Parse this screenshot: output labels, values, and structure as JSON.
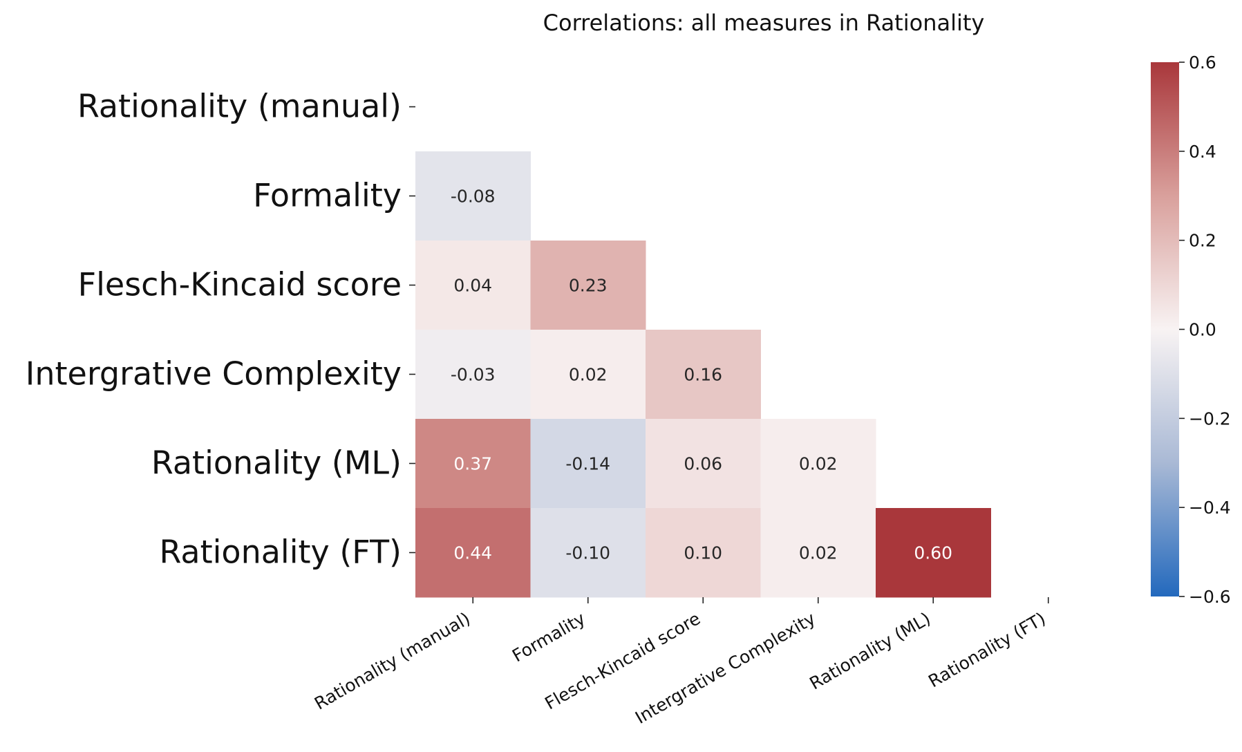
{
  "chart_data": {
    "type": "heatmap",
    "title": "Correlations: all measures in Rationality",
    "row_labels": [
      "Rationality (manual)",
      "Formality",
      "Flesch-Kincaid score",
      "Intergrative Complexity",
      "Rationality (ML)",
      "Rationality (FT)"
    ],
    "col_labels": [
      "Rationality (manual)",
      "Formality",
      "Flesch-Kincaid score",
      "Intergrative Complexity",
      "Rationality (ML)",
      "Rationality (FT)"
    ],
    "mask": "upper-triangle-including-diagonal",
    "cells": [
      {
        "row": 1,
        "col": 0,
        "value": -0.08,
        "label": "-0.08"
      },
      {
        "row": 2,
        "col": 0,
        "value": 0.04,
        "label": "0.04"
      },
      {
        "row": 2,
        "col": 1,
        "value": 0.23,
        "label": "0.23"
      },
      {
        "row": 3,
        "col": 0,
        "value": -0.03,
        "label": "-0.03"
      },
      {
        "row": 3,
        "col": 1,
        "value": 0.02,
        "label": "0.02"
      },
      {
        "row": 3,
        "col": 2,
        "value": 0.16,
        "label": "0.16"
      },
      {
        "row": 4,
        "col": 0,
        "value": 0.37,
        "label": "0.37"
      },
      {
        "row": 4,
        "col": 1,
        "value": -0.14,
        "label": "-0.14"
      },
      {
        "row": 4,
        "col": 2,
        "value": 0.06,
        "label": "0.06"
      },
      {
        "row": 4,
        "col": 3,
        "value": 0.02,
        "label": "0.02"
      },
      {
        "row": 5,
        "col": 0,
        "value": 0.44,
        "label": "0.44"
      },
      {
        "row": 5,
        "col": 1,
        "value": -0.1,
        "label": "-0.10"
      },
      {
        "row": 5,
        "col": 2,
        "value": 0.1,
        "label": "0.10"
      },
      {
        "row": 5,
        "col": 3,
        "value": 0.02,
        "label": "0.02"
      },
      {
        "row": 5,
        "col": 4,
        "value": 0.6,
        "label": "0.60"
      }
    ],
    "colorbar": {
      "min": -0.6,
      "max": 0.6,
      "ticks": [
        0.6,
        0.4,
        0.2,
        0.0,
        -0.2,
        -0.4,
        -0.6
      ],
      "tick_labels": [
        "0.6",
        "0.4",
        "0.2",
        "0.0",
        "−0.2",
        "−0.4",
        "−0.6"
      ],
      "colormap": "vlag",
      "color_stops": [
        "#2369bd",
        "#a9b9d5",
        "#f8f3f3",
        "#d9a09c",
        "#a9373b"
      ]
    }
  }
}
